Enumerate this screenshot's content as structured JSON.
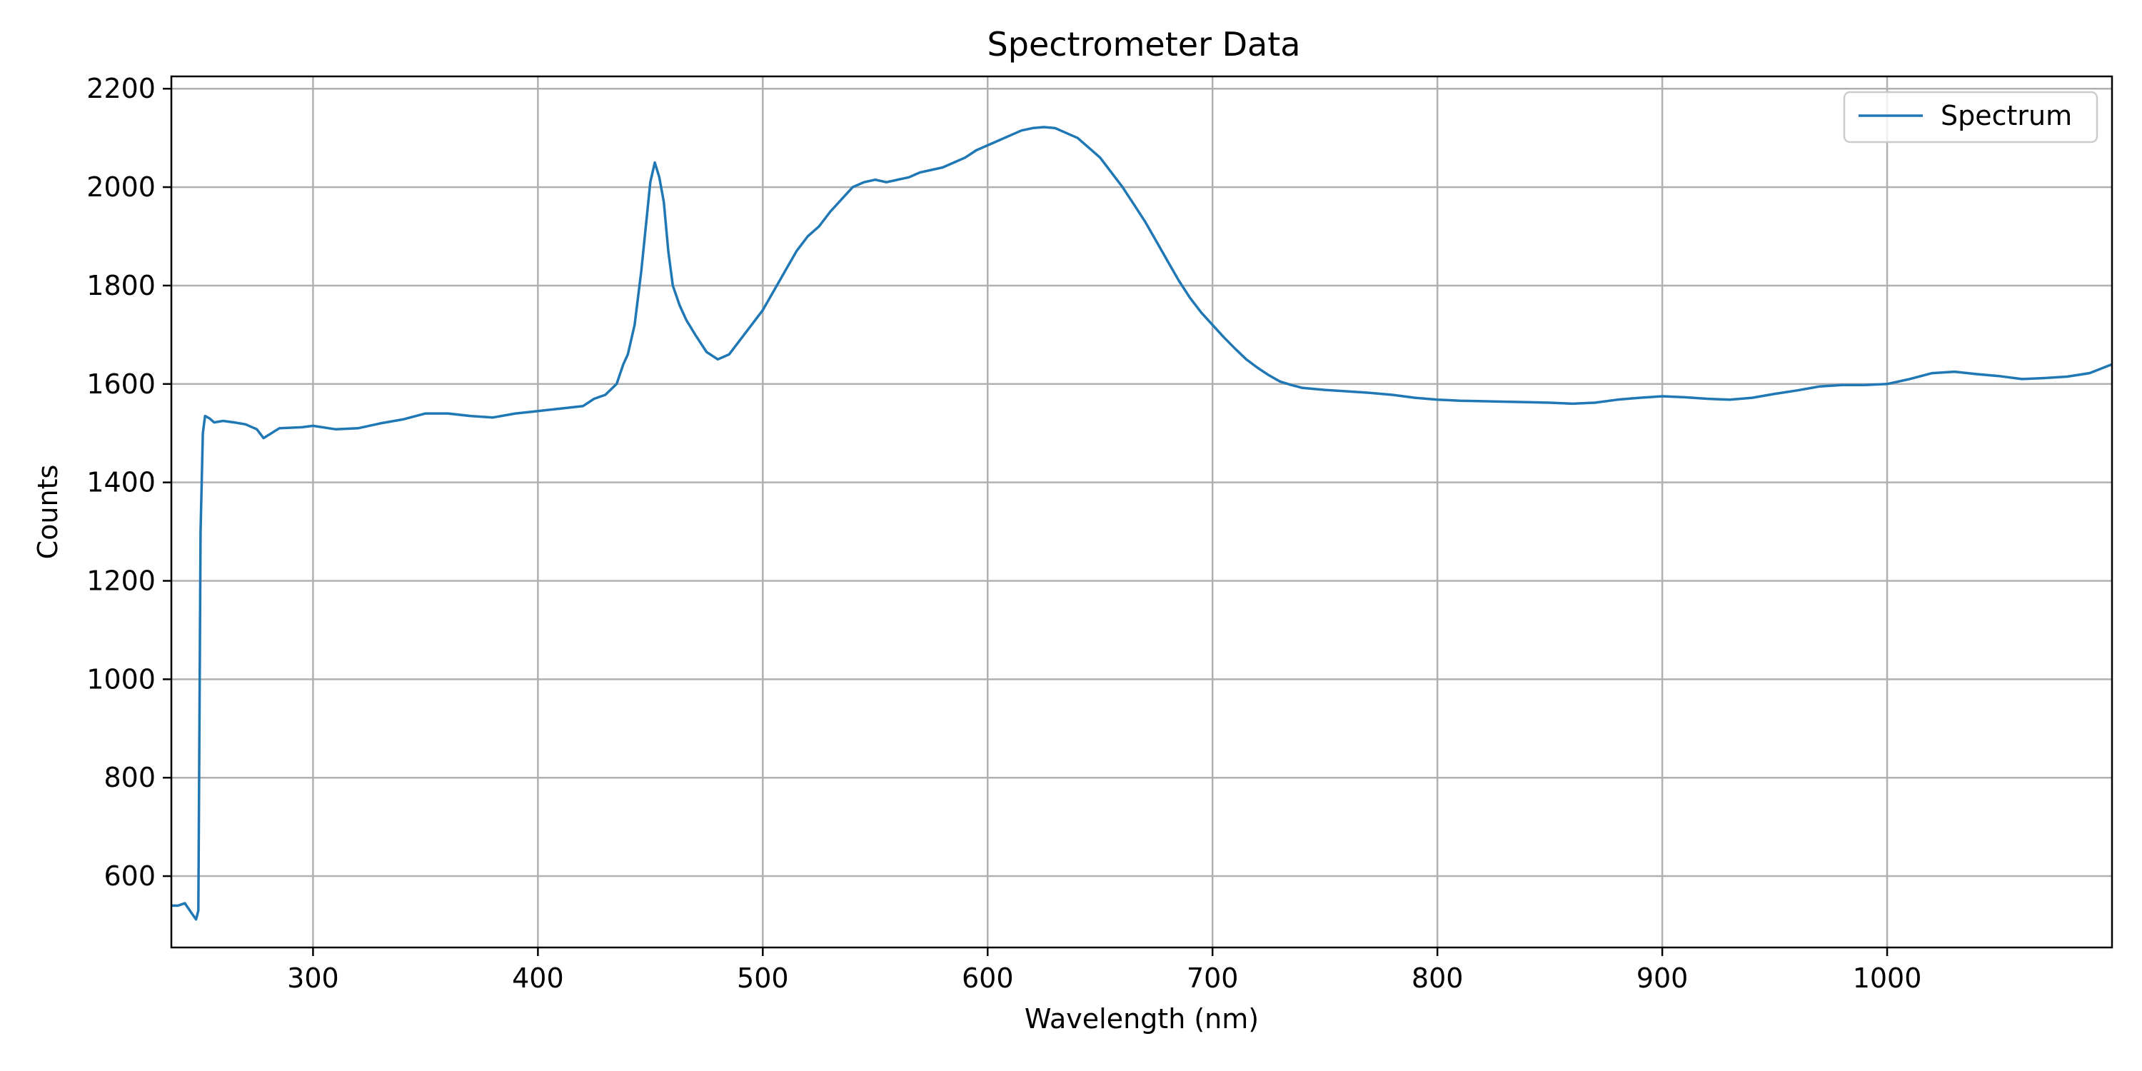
{
  "chart_data": {
    "type": "line",
    "title": "Spectrometer Data",
    "xlabel": "Wavelength (nm)",
    "ylabel": "Counts",
    "xlim": [
      237,
      1100
    ],
    "ylim": [
      455,
      2225
    ],
    "xticks": [
      300,
      400,
      500,
      600,
      700,
      800,
      900,
      1000
    ],
    "yticks": [
      600,
      800,
      1000,
      1200,
      1400,
      1600,
      1800,
      2000,
      2200
    ],
    "grid": true,
    "legend_position": "top-right",
    "line_color": "#1f77b4",
    "series": [
      {
        "name": "Spectrum",
        "x": [
          237,
          240,
          243,
          246,
          248,
          249,
          250,
          251,
          252,
          254,
          256,
          260,
          265,
          270,
          275,
          278,
          285,
          295,
          300,
          310,
          320,
          330,
          340,
          350,
          360,
          370,
          380,
          390,
          400,
          410,
          420,
          425,
          430,
          435,
          438,
          440,
          443,
          446,
          448,
          450,
          452,
          454,
          456,
          458,
          460,
          463,
          466,
          470,
          475,
          480,
          485,
          490,
          495,
          500,
          505,
          510,
          515,
          520,
          525,
          530,
          535,
          540,
          545,
          550,
          555,
          560,
          565,
          570,
          575,
          580,
          585,
          590,
          595,
          600,
          605,
          610,
          615,
          620,
          625,
          630,
          635,
          640,
          645,
          650,
          655,
          660,
          665,
          670,
          675,
          680,
          685,
          690,
          695,
          700,
          705,
          710,
          715,
          720,
          725,
          730,
          735,
          740,
          750,
          760,
          770,
          780,
          790,
          800,
          810,
          820,
          830,
          840,
          850,
          860,
          870,
          880,
          890,
          900,
          910,
          920,
          930,
          940,
          950,
          960,
          970,
          980,
          990,
          1000,
          1010,
          1020,
          1030,
          1040,
          1050,
          1060,
          1070,
          1080,
          1090,
          1100
        ],
        "y": [
          540,
          540,
          545,
          525,
          512,
          530,
          1300,
          1500,
          1535,
          1530,
          1522,
          1525,
          1522,
          1518,
          1508,
          1490,
          1510,
          1512,
          1515,
          1508,
          1510,
          1520,
          1528,
          1540,
          1540,
          1535,
          1532,
          1540,
          1545,
          1550,
          1555,
          1570,
          1578,
          1600,
          1640,
          1660,
          1720,
          1830,
          1920,
          2010,
          2050,
          2020,
          1970,
          1870,
          1800,
          1760,
          1730,
          1700,
          1665,
          1650,
          1660,
          1690,
          1720,
          1750,
          1790,
          1830,
          1870,
          1900,
          1920,
          1950,
          1975,
          2000,
          2010,
          2015,
          2010,
          2015,
          2020,
          2030,
          2035,
          2040,
          2050,
          2060,
          2075,
          2085,
          2095,
          2105,
          2115,
          2120,
          2122,
          2120,
          2110,
          2100,
          2080,
          2060,
          2030,
          2000,
          1965,
          1930,
          1890,
          1850,
          1810,
          1775,
          1745,
          1720,
          1695,
          1672,
          1650,
          1633,
          1618,
          1605,
          1598,
          1592,
          1588,
          1585,
          1582,
          1578,
          1572,
          1568,
          1566,
          1565,
          1564,
          1563,
          1562,
          1560,
          1562,
          1568,
          1572,
          1575,
          1573,
          1570,
          1568,
          1572,
          1580,
          1587,
          1595,
          1598,
          1598,
          1600,
          1610,
          1622,
          1625,
          1620,
          1616,
          1610,
          1612,
          1615,
          1622,
          1640
        ]
      }
    ]
  }
}
